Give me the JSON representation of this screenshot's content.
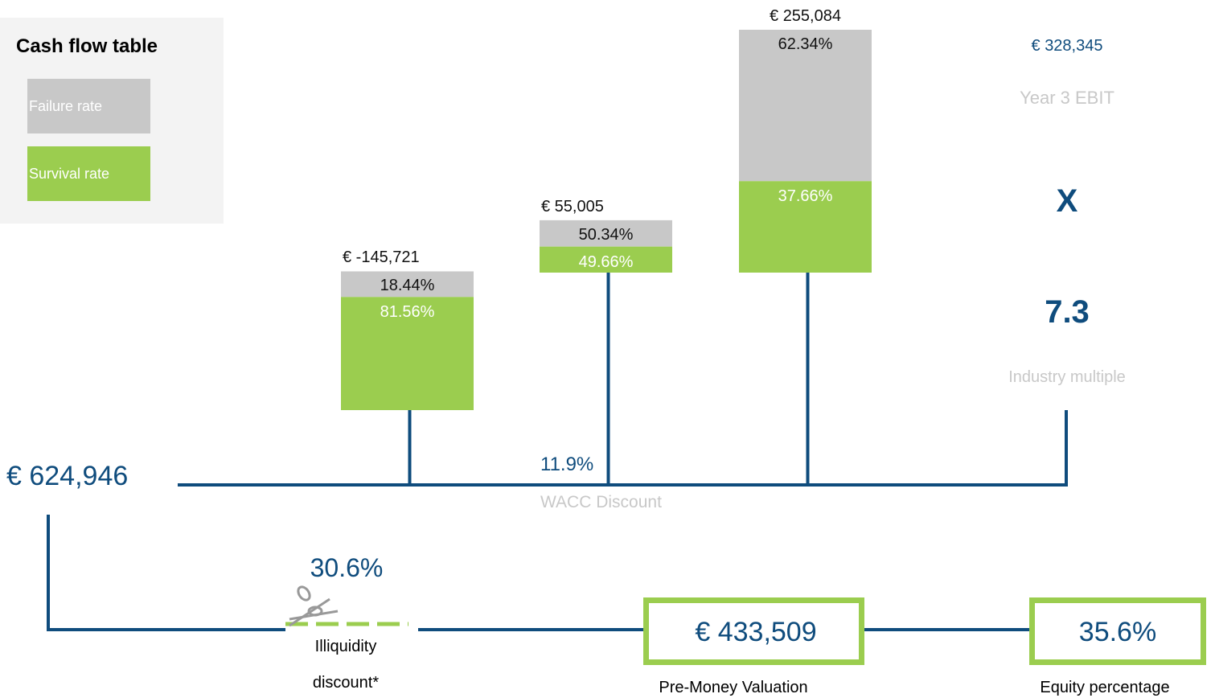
{
  "legend": {
    "title": "Cash flow table",
    "failure": "Failure rate",
    "survival": "Survival rate"
  },
  "cash_flows": [
    {
      "amount": {
        "value": -145721,
        "label": "€ -145,721"
      },
      "failure": {
        "value": 18.44,
        "label": "18.44%"
      },
      "survival": {
        "value": 81.56,
        "label": "81.56%"
      }
    },
    {
      "amount": {
        "value": 55005,
        "label": "€ 55,005"
      },
      "failure": {
        "value": 50.34,
        "label": "50.34%"
      },
      "survival": {
        "value": 49.66,
        "label": "49.66%"
      }
    },
    {
      "amount": {
        "value": 255084,
        "label": "€ 255,084"
      },
      "failure": {
        "value": 62.34,
        "label": "62.34%"
      },
      "survival": {
        "value": 37.66,
        "label": "37.66%"
      }
    }
  ],
  "wacc": {
    "value": "11.9%",
    "label": "WACC Discount"
  },
  "ebit": {
    "value": "€ 328,345",
    "label": "Year 3 EBIT"
  },
  "operator": "X",
  "multiple": {
    "value": "7.3",
    "label": "Industry multiple"
  },
  "total": "€ 624,946",
  "illiquidity": {
    "value": "30.6%",
    "label": "Illiquidity discount*"
  },
  "pre_money": {
    "value": "€ 433,509",
    "label": "Pre-Money Valuation"
  },
  "equity": {
    "value": "35.6%",
    "label": "Equity percentage"
  }
}
